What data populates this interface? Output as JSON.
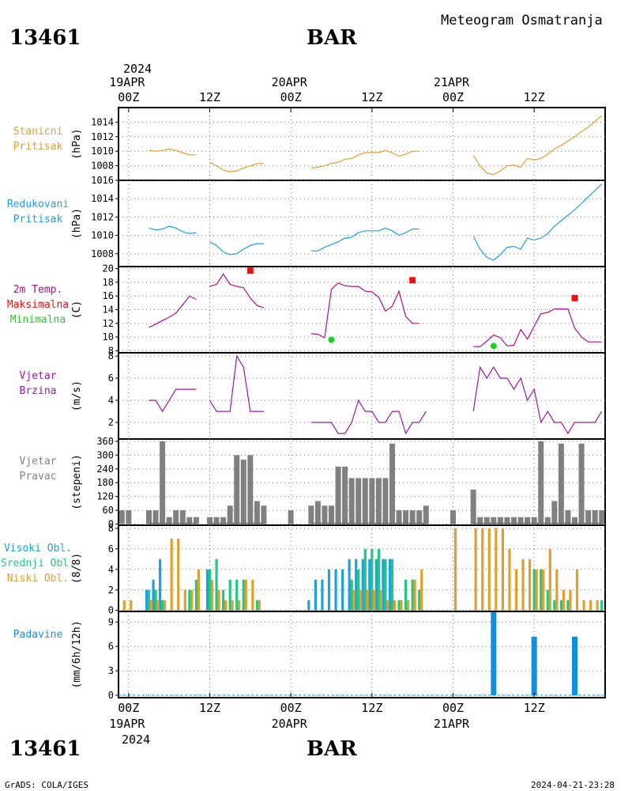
{
  "header": {
    "station_id": "13461",
    "station_name": "BAR",
    "product": "Meteogram Osmatranja",
    "footer_left": "GrADS: COLA/IGES",
    "footer_right": "2024-04-21-23:28"
  },
  "time_axis": {
    "top_year": "2024",
    "bottom_year": "2024",
    "ticks": [
      {
        "x_hours": 0,
        "hour": "00Z",
        "date": "19APR"
      },
      {
        "x_hours": 12,
        "hour": "12Z",
        "date": ""
      },
      {
        "x_hours": 24,
        "hour": "00Z",
        "date": "20APR"
      },
      {
        "x_hours": 36,
        "hour": "12Z",
        "date": ""
      },
      {
        "x_hours": 48,
        "hour": "00Z",
        "date": "21APR"
      },
      {
        "x_hours": 60,
        "hour": "12Z",
        "date": ""
      }
    ],
    "range_hours": [
      -1.5,
      70.5
    ]
  },
  "colors": {
    "orange": "#e0a030",
    "blue": "#1fa0e0",
    "green": "#20c880",
    "magenta": "#b0108a",
    "purple": "#9a1aa0",
    "red": "#ee1010",
    "lime": "#20d020",
    "gray": "#808080",
    "precip": "#1090e0"
  },
  "chart_data": [
    {
      "type": "line",
      "labels": [
        "Stanicni",
        "Pritisak"
      ],
      "ylabel": "(hPa)",
      "yticks": [
        1008,
        1010,
        1012,
        1014
      ],
      "ylim": [
        1006,
        1016
      ],
      "color": "orange",
      "segments": [
        {
          "x": [
            3,
            4,
            5,
            6,
            7,
            8,
            9,
            10
          ],
          "y": [
            1010.1,
            1010.0,
            1010.1,
            1010.3,
            1010.1,
            1009.8,
            1009.5,
            1009.5
          ]
        },
        {
          "x": [
            12,
            13,
            14,
            15,
            16,
            17,
            18,
            19,
            20
          ],
          "y": [
            1008.5,
            1008.0,
            1007.4,
            1007.2,
            1007.3,
            1007.7,
            1008.0,
            1008.3,
            1008.3
          ]
        },
        {
          "x": [
            27,
            28,
            29,
            30,
            31,
            32,
            33,
            34,
            35,
            36,
            37,
            38,
            39,
            40,
            41,
            42,
            43
          ],
          "y": [
            1007.7,
            1007.8,
            1008.0,
            1008.3,
            1008.5,
            1008.9,
            1009.0,
            1009.5,
            1009.8,
            1009.8,
            1009.8,
            1010.1,
            1009.8,
            1009.3,
            1009.6,
            1010.0,
            1010.0
          ]
        },
        {
          "x": [
            51,
            52,
            53,
            54,
            55,
            56,
            57,
            58,
            59,
            60,
            61,
            62,
            63,
            64,
            65,
            66,
            67,
            68,
            69,
            70
          ],
          "y": [
            1009.4,
            1008.0,
            1007.0,
            1006.8,
            1007.3,
            1008.0,
            1008.1,
            1007.8,
            1009.0,
            1008.8,
            1009.0,
            1009.6,
            1010.3,
            1010.8,
            1011.4,
            1012.0,
            1012.7,
            1013.3,
            1014.1,
            1014.9
          ]
        }
      ]
    },
    {
      "type": "line",
      "labels": [
        "Redukovani",
        "Pritisak"
      ],
      "ylabel": "(hPa)",
      "yticks": [
        1008,
        1010,
        1012,
        1014,
        1016
      ],
      "ylim": [
        1006.6,
        1016
      ],
      "color": "blue",
      "segments": [
        {
          "x": [
            3,
            4,
            5,
            6,
            7,
            8,
            9,
            10
          ],
          "y": [
            1010.8,
            1010.6,
            1010.7,
            1011.0,
            1010.8,
            1010.4,
            1010.2,
            1010.3
          ]
        },
        {
          "x": [
            12,
            13,
            14,
            15,
            16,
            17,
            18,
            19,
            20
          ],
          "y": [
            1009.3,
            1008.9,
            1008.2,
            1007.9,
            1008.0,
            1008.5,
            1008.9,
            1009.1,
            1009.1
          ]
        },
        {
          "x": [
            27,
            28,
            29,
            30,
            31,
            32,
            33,
            34,
            35,
            36,
            37,
            38,
            39,
            40,
            41,
            42,
            43
          ],
          "y": [
            1008.3,
            1008.3,
            1008.7,
            1009.0,
            1009.3,
            1009.7,
            1009.8,
            1010.3,
            1010.5,
            1010.5,
            1010.5,
            1010.8,
            1010.5,
            1010.0,
            1010.3,
            1010.7,
            1010.7
          ]
        },
        {
          "x": [
            51,
            52,
            53,
            54,
            55,
            56,
            57,
            58,
            59,
            60,
            61,
            62,
            63,
            64,
            65,
            66,
            67,
            68,
            69,
            70
          ],
          "y": [
            1009.9,
            1008.5,
            1007.6,
            1007.3,
            1007.9,
            1008.7,
            1008.8,
            1008.5,
            1009.7,
            1009.5,
            1009.7,
            1010.2,
            1011.0,
            1011.6,
            1012.2,
            1012.8,
            1013.5,
            1014.2,
            1014.9,
            1015.6
          ]
        }
      ]
    },
    {
      "type": "line",
      "labels": [
        "2m Temp.",
        "Maksimalna",
        "Minimalna"
      ],
      "ylabel": "(C)",
      "yticks": [
        8,
        10,
        12,
        14,
        16,
        18,
        20
      ],
      "ylim": [
        7.7,
        20.3
      ],
      "color": "magenta",
      "segments": [
        {
          "x": [
            3,
            4,
            5,
            6,
            7,
            8,
            9,
            10
          ],
          "y": [
            11.4,
            11.9,
            12.4,
            12.9,
            13.5,
            14.7,
            16.0,
            15.5
          ]
        },
        {
          "x": [
            12,
            13,
            14,
            15,
            16,
            17,
            18,
            19,
            20
          ],
          "y": [
            17.4,
            17.7,
            19.2,
            17.7,
            17.4,
            17.2,
            15.7,
            14.6,
            14.3
          ]
        },
        {
          "x": [
            27,
            28,
            29,
            30,
            31,
            32,
            33,
            34,
            35,
            36,
            37,
            38,
            39,
            40,
            41,
            42,
            43
          ],
          "y": [
            10.5,
            10.4,
            9.9,
            17.0,
            17.9,
            17.5,
            17.4,
            17.4,
            16.7,
            16.6,
            15.8,
            13.8,
            14.5,
            16.7,
            13.0,
            12.0,
            12.0
          ]
        },
        {
          "x": [
            51,
            52,
            53,
            54,
            55,
            56,
            57,
            58,
            59,
            60,
            61,
            62,
            63,
            64,
            65,
            66,
            67,
            68,
            69,
            70
          ],
          "y": [
            8.6,
            8.6,
            9.4,
            10.3,
            9.9,
            8.7,
            8.8,
            11.1,
            9.7,
            11.6,
            13.4,
            13.6,
            14.1,
            14.1,
            14.1,
            11.3,
            10.0,
            9.3,
            9.3,
            9.3
          ]
        }
      ],
      "max_points": {
        "color": "red",
        "x": [
          18,
          42,
          66
        ],
        "y": [
          19.7,
          18.3,
          15.7
        ]
      },
      "min_points": {
        "color": "lime",
        "x": [
          30,
          54
        ],
        "y": [
          9.6,
          8.7
        ]
      }
    },
    {
      "type": "line",
      "labels": [
        "Vjetar",
        "Brzina"
      ],
      "ylabel": "(m/s)",
      "yticks": [
        2,
        4,
        6,
        8
      ],
      "ylim": [
        0.5,
        8.3
      ],
      "color": "purple",
      "segments": [
        {
          "x": [
            3,
            4,
            5,
            6,
            7,
            8,
            9,
            10
          ],
          "y": [
            4,
            4,
            3,
            4,
            5,
            5,
            5,
            5
          ]
        },
        {
          "x": [
            12,
            13,
            14,
            15,
            16,
            17,
            18,
            19,
            20
          ],
          "y": [
            4,
            3,
            3,
            3,
            8,
            7,
            3,
            3,
            3
          ]
        },
        {
          "x": [
            27,
            28,
            29,
            30,
            31,
            32,
            33,
            34,
            35,
            36,
            37,
            38,
            39,
            40,
            41,
            42,
            43
          ],
          "y": [
            2,
            2,
            2,
            2,
            1,
            1,
            2,
            4,
            3,
            3,
            2,
            2,
            3,
            3,
            1,
            2,
            2
          ]
        },
        {
          "x": [
            43,
            44
          ],
          "y": [
            2,
            3
          ]
        },
        {
          "x": [
            51,
            52,
            53,
            54,
            55,
            56,
            57,
            58,
            59,
            60,
            61,
            62,
            63,
            64,
            65,
            66,
            67,
            68,
            69,
            70
          ],
          "y": [
            3,
            7,
            6,
            7,
            6,
            6,
            5,
            6,
            4,
            5,
            2,
            3,
            2,
            2,
            1,
            2,
            2,
            2,
            2,
            3
          ]
        }
      ]
    },
    {
      "type": "bar",
      "labels": [
        "Vjetar",
        "Pravac"
      ],
      "ylabel": "(stepeni)",
      "yticks": [
        0,
        60,
        120,
        180,
        240,
        300,
        360
      ],
      "ylim": [
        -5,
        370
      ],
      "color": "gray",
      "baseline_color": "red",
      "x": [
        -1,
        0,
        3,
        4,
        5,
        6,
        7,
        8,
        9,
        10,
        12,
        13,
        14,
        15,
        16,
        17,
        18,
        19,
        20,
        24,
        27,
        28,
        29,
        30,
        31,
        32,
        33,
        34,
        35,
        36,
        37,
        38,
        39,
        40,
        41,
        42,
        43,
        44,
        48,
        51,
        52,
        53,
        54,
        55,
        56,
        57,
        58,
        59,
        60,
        61,
        62,
        63,
        64,
        65,
        66,
        67,
        68,
        69,
        70
      ],
      "values": [
        60,
        60,
        60,
        60,
        360,
        30,
        60,
        60,
        30,
        30,
        30,
        30,
        30,
        80,
        300,
        280,
        300,
        100,
        80,
        60,
        80,
        100,
        80,
        80,
        250,
        250,
        200,
        200,
        200,
        200,
        200,
        200,
        350,
        60,
        60,
        60,
        60,
        80,
        60,
        150,
        30,
        30,
        30,
        30,
        30,
        30,
        30,
        30,
        30,
        360,
        30,
        100,
        350,
        60,
        30,
        350,
        60,
        60,
        60
      ]
    },
    {
      "type": "bar",
      "labels": [
        "Visoki Obl.",
        "Srednji Obl.",
        "Niski Obl."
      ],
      "label_colors": [
        "blue",
        "green",
        "orange"
      ],
      "ylabel": "(8/8)",
      "yticks": [
        0,
        2,
        4,
        6,
        8
      ],
      "ylim": [
        -0.1,
        8.3
      ],
      "series": [
        {
          "name": "Visoki Obl.",
          "color": "blue",
          "x": [
            3,
            4,
            5,
            12,
            27,
            28,
            29,
            30,
            31,
            32,
            33,
            34,
            35,
            36,
            37,
            38,
            39
          ],
          "values": [
            2,
            3,
            5,
            4,
            1,
            3,
            3,
            4,
            4,
            4,
            5,
            5,
            5,
            5,
            5,
            5,
            5
          ]
        },
        {
          "name": "Srednji Obl.",
          "color": "green",
          "x": [
            3,
            4,
            5,
            9,
            10,
            12,
            13,
            14,
            15,
            16,
            17,
            19,
            33,
            34,
            35,
            36,
            37,
            38,
            39,
            40,
            41,
            42,
            43,
            60,
            61,
            62,
            63,
            64,
            65,
            70
          ],
          "values": [
            2,
            2,
            1,
            2,
            3,
            4,
            5,
            2,
            3,
            3,
            3,
            1,
            3,
            4,
            6,
            6,
            6,
            5,
            5,
            1,
            3,
            3,
            2,
            4,
            4,
            2,
            1,
            1,
            1,
            1
          ]
        },
        {
          "name": "Niski Obl.",
          "color": "orange",
          "x": [
            -1,
            0,
            3,
            4,
            5,
            6,
            7,
            8,
            9,
            10,
            12,
            13,
            14,
            15,
            16,
            17,
            18,
            19,
            33,
            34,
            35,
            36,
            37,
            38,
            39,
            40,
            41,
            42,
            43,
            48,
            51,
            52,
            53,
            54,
            55,
            56,
            57,
            58,
            59,
            60,
            61,
            62,
            63,
            64,
            65,
            66,
            67,
            68,
            69
          ],
          "values": [
            1,
            1,
            1,
            1,
            1,
            7,
            7,
            2,
            2,
            4,
            3,
            2,
            1,
            1,
            1,
            3,
            3,
            1,
            2,
            2,
            2,
            2,
            2,
            1,
            1,
            1,
            1,
            3,
            4,
            8,
            8,
            8,
            8,
            8,
            8,
            6,
            4,
            5,
            5,
            4,
            4,
            6,
            4,
            2,
            2,
            4,
            1,
            1,
            1
          ]
        }
      ]
    },
    {
      "type": "bar",
      "labels": [
        "Padavine"
      ],
      "ylabel": "(mm/6h/12h)",
      "yticks": [
        0,
        3,
        6,
        9
      ],
      "ylim": [
        -0.3,
        10.3
      ],
      "color": "precip",
      "x": [
        54,
        60,
        66
      ],
      "values": [
        10.2,
        7.2,
        7.2
      ]
    }
  ]
}
